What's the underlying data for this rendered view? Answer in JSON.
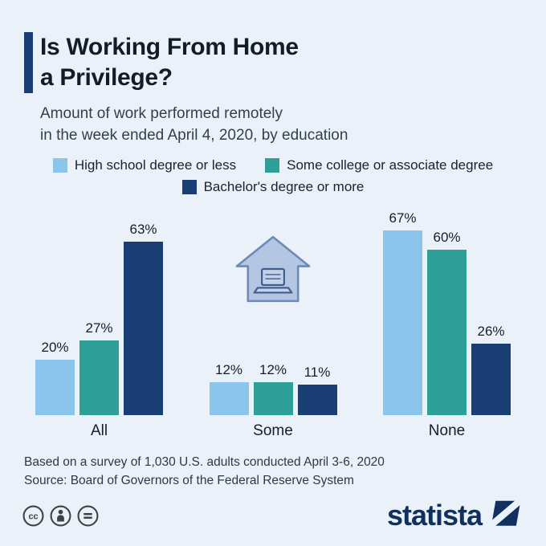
{
  "background": "#eaf1f8",
  "header": {
    "title_line1": "Is Working From Home",
    "title_line2": "a Privilege?",
    "subtitle_line1": "Amount of work performed remotely",
    "subtitle_line2": "in the week ended April 4, 2020, by education",
    "accent_color": "#1a3e74"
  },
  "chart_data": {
    "type": "bar",
    "title": "Is Working From Home a Privilege?",
    "subtitle": "Amount of work performed remotely in the week ended April 4, 2020, by education",
    "categories": [
      "All",
      "Some",
      "None"
    ],
    "series": [
      {
        "name": "High school degree or less",
        "color": "#8cc5ec",
        "values": [
          20,
          12,
          67
        ]
      },
      {
        "name": "Some college or associate degree",
        "color": "#2fa098",
        "values": [
          27,
          12,
          60
        ]
      },
      {
        "name": "Bachelor's degree or more",
        "color": "#1a3e74",
        "values": [
          63,
          11,
          26
        ]
      }
    ],
    "value_suffix": "%",
    "ylim": [
      0,
      70
    ],
    "grid": false,
    "legend_position": "top"
  },
  "decor": {
    "house_icon": "house-with-laptop-icon"
  },
  "footer": {
    "note": "Based on a survey of 1,030 U.S. adults conducted April 3-6, 2020",
    "source": "Source: Board of Governors of the Federal Reserve System"
  },
  "branding": {
    "logo_text": "statista",
    "logo_color": "#12305e",
    "license_icons": [
      "cc-icon",
      "attribution-icon",
      "equal-icon"
    ]
  }
}
